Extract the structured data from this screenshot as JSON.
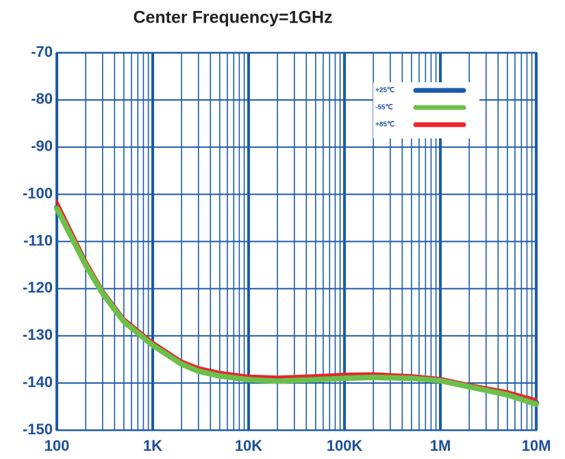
{
  "chart_data": {
    "type": "line",
    "title": "Center Frequency=1GHz",
    "x": [
      100,
      200,
      300,
      500,
      1000,
      2000,
      3000,
      5000,
      10000,
      20000,
      50000,
      100000,
      200000,
      500000,
      1000000,
      2000000,
      5000000,
      10000000
    ],
    "series": [
      {
        "name": "+25℃",
        "color": "#1a5aa8",
        "values": [
          -102.8,
          -114.8,
          -120.8,
          -126.8,
          -131.8,
          -135.8,
          -137.3,
          -138.3,
          -139.1,
          -139.4,
          -139.1,
          -138.8,
          -138.6,
          -138.8,
          -139.3,
          -140.6,
          -142.3,
          -144.2
        ]
      },
      {
        "name": "-55℃",
        "color": "#6cc04a",
        "values": [
          -103,
          -115,
          -121,
          -127,
          -132,
          -136,
          -137.5,
          -138.5,
          -139.3,
          -139.6,
          -139.3,
          -139,
          -138.8,
          -139,
          -139.5,
          -140.8,
          -142.5,
          -144.5
        ]
      },
      {
        "name": "+85℃",
        "color": "#e8262a",
        "values": [
          -101.5,
          -114,
          -120.3,
          -126.3,
          -131.3,
          -135.3,
          -136.7,
          -137.7,
          -138.5,
          -138.7,
          -138.4,
          -138.1,
          -138,
          -138.4,
          -139,
          -140.3,
          -141.8,
          -143.5
        ]
      }
    ],
    "xscale": "log",
    "xlim": [
      100,
      10000000
    ],
    "xticks": [
      100,
      {
        "value": 1000,
        "label": "1K"
      },
      {
        "value": 10000,
        "label": "10K"
      },
      {
        "value": 100000,
        "label": "100K"
      },
      {
        "value": 1000000,
        "label": "1M"
      },
      {
        "value": 10000000,
        "label": "10M"
      }
    ],
    "xminorticks": [
      200,
      300,
      400,
      500,
      600,
      700,
      800,
      900,
      2000,
      3000,
      4000,
      5000,
      6000,
      7000,
      8000,
      9000,
      20000,
      30000,
      40000,
      50000,
      60000,
      70000,
      80000,
      90000,
      200000,
      300000,
      400000,
      500000,
      600000,
      700000,
      800000,
      900000,
      2000000,
      3000000,
      4000000,
      5000000,
      6000000,
      7000000,
      8000000,
      9000000
    ],
    "ylim": [
      -150,
      -70
    ],
    "yticks": [
      -70,
      -80,
      -90,
      -100,
      -110,
      -120,
      -130,
      -140,
      -150
    ],
    "grid": true,
    "legend": "upper right"
  }
}
